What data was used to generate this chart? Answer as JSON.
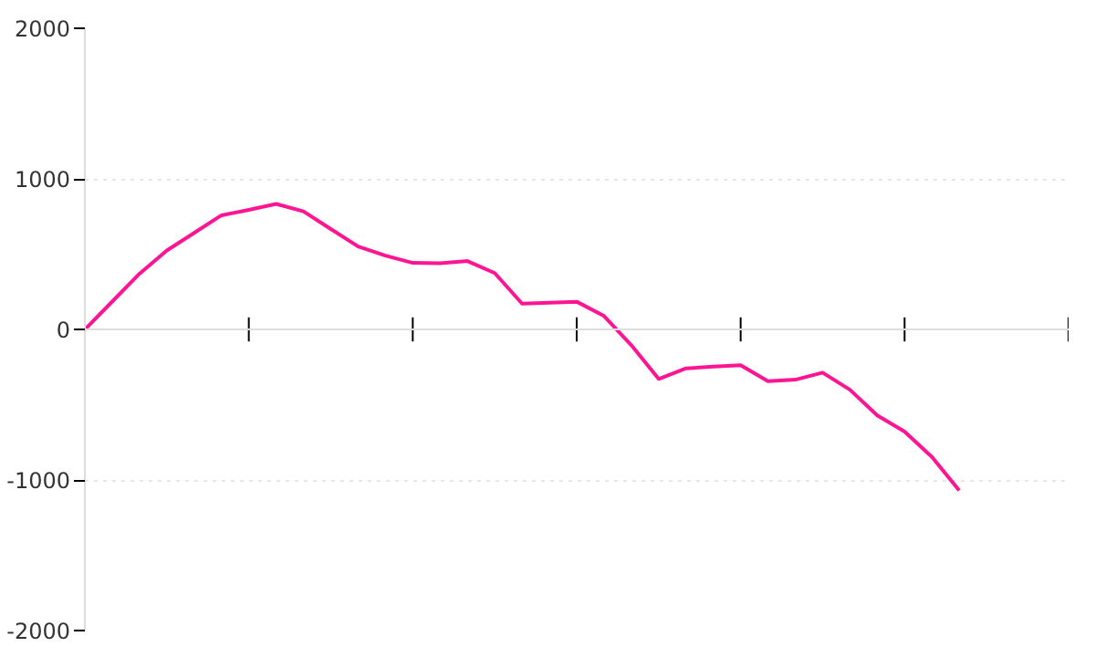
{
  "chart_data": {
    "type": "line",
    "categories": [
      null,
      null,
      null,
      null,
      null,
      null,
      null,
      null,
      null,
      null,
      null,
      null,
      null,
      null,
      null,
      null,
      null,
      null,
      null,
      null,
      null,
      null,
      null,
      null,
      null,
      null,
      null,
      null,
      null,
      null,
      null,
      null,
      null
    ],
    "series": [
      {
        "color": "#ff1493",
        "values": [
          0,
          185,
          370,
          524,
          641,
          758,
          794,
          833,
          784,
          667,
          551,
          490,
          442,
          440,
          454,
          374,
          171,
          178,
          184,
          89,
          -105,
          -329,
          -259,
          -247,
          -238,
          -344,
          -334,
          -287,
          -401,
          -571,
          -679,
          -847,
          -1070
        ]
      }
    ],
    "ylim": [
      -2000,
      2000
    ],
    "yticks": [
      -2000,
      -1000,
      0,
      1000,
      2000
    ],
    "grid": "y",
    "tick_labels": "y",
    "line_style": "solid",
    "marker": "none"
  }
}
